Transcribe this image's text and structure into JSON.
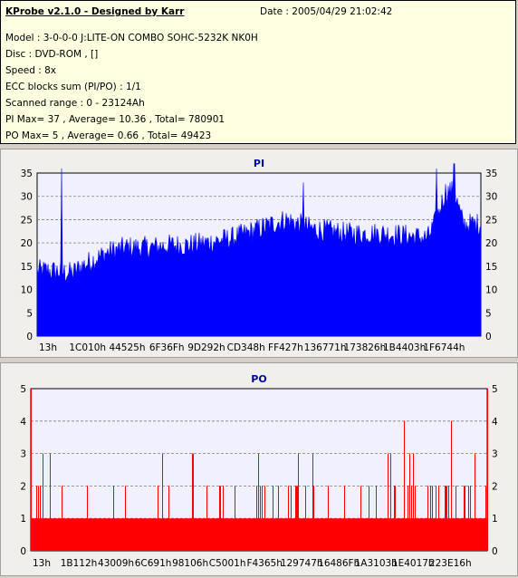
{
  "info": {
    "app_title": "KProbe v2.1.0 - Designed by Karr",
    "date_line": "Date : 2005/04/29 21:02:42",
    "lines": [
      "Model : 3-0-0-0 J:LITE-ON COMBO SOHC-5232K NK0H",
      "Disc : DVD-ROM ,  []",
      "Speed : 8x",
      "ECC blocks sum (PI/PO) : 1/1",
      "Scanned range : 0 - 23124Ah",
      "PI Max= 37 , Average= 10.36 , Total= 780901",
      "PO Max= 5 , Average= 0.66 , Total= 49423"
    ]
  },
  "colors": {
    "pi": "#0000ff",
    "po": "#ff0000",
    "plot_bg": "#f0f0ff",
    "grid": "#7f7f7f"
  },
  "chart_data": [
    {
      "type": "bar",
      "title": "PI",
      "ylim": [
        0,
        35
      ],
      "yticks": [
        0,
        5,
        10,
        15,
        20,
        25,
        30,
        35
      ],
      "xtick_labels": [
        "13h",
        "1C010h",
        "44525h",
        "6F36Fh",
        "9D292h",
        "CD348h",
        "FF427h",
        "136771h",
        "173826h",
        "1B4403h",
        "1F6744h"
      ],
      "profile_x": [
        0.0,
        0.03,
        0.08,
        0.1,
        0.16,
        0.2,
        0.26,
        0.3,
        0.34,
        0.38,
        0.44,
        0.5,
        0.56,
        0.62,
        0.7,
        0.78,
        0.84,
        0.88,
        0.9,
        0.92,
        0.94,
        0.96,
        1.0
      ],
      "profile_y": [
        14,
        14,
        13.5,
        15,
        18,
        19,
        19,
        19.5,
        19.5,
        20,
        21,
        23,
        25,
        23,
        22,
        22,
        21.5,
        21,
        25,
        31,
        31,
        24,
        24
      ],
      "spikes": [
        {
          "x": 0.055,
          "y": 36
        },
        {
          "x": 0.6,
          "y": 33
        },
        {
          "x": 0.9,
          "y": 36
        },
        {
          "x": 0.94,
          "y": 37
        }
      ]
    },
    {
      "type": "bar",
      "title": "PO",
      "ylim": [
        0,
        5
      ],
      "yticks": [
        0,
        1,
        2,
        3,
        4,
        5
      ],
      "xtick_labels": [
        "13h",
        "1B112h",
        "43009h",
        "6C691h",
        "98106h",
        "C5001h",
        "F4365h",
        "129747h",
        "16486Fh",
        "1A3103h",
        "1E4017h",
        "223E16h"
      ],
      "max_marks": [
        {
          "x": 0.0,
          "y": 5
        },
        {
          "x": 0.817,
          "y": 4
        },
        {
          "x": 0.92,
          "y": 4
        },
        {
          "x": 1.0,
          "y": 5
        }
      ]
    }
  ]
}
